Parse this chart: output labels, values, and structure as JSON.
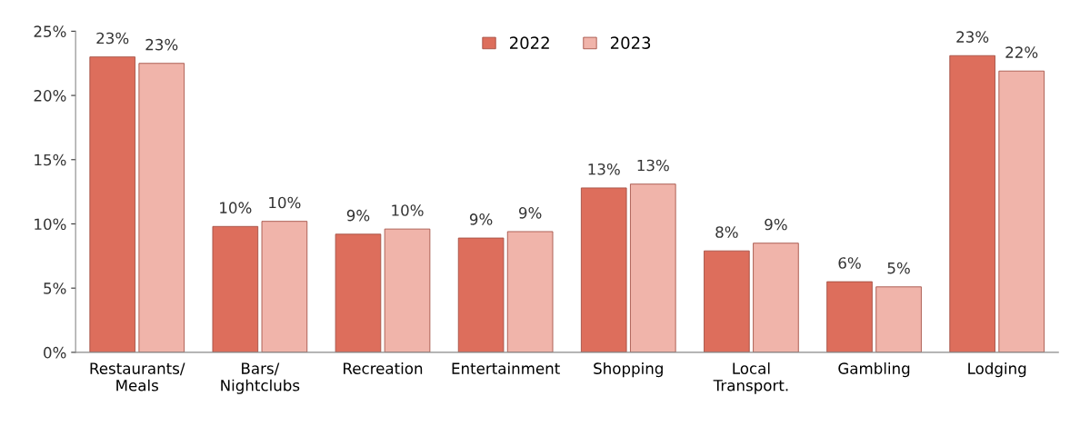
{
  "chart_data": {
    "type": "bar",
    "categories": [
      "Restaurants/\nMeals",
      "Bars/\nNightclubs",
      "Recreation",
      "Entertainment",
      "Shopping",
      "Local\nTransport.",
      "Gambling",
      "Lodging"
    ],
    "series": [
      {
        "name": "2022",
        "color": "#dd6e5c",
        "values": [
          23.0,
          9.8,
          9.2,
          8.9,
          12.8,
          7.9,
          5.5,
          23.1
        ],
        "value_labels": [
          "23%",
          "10%",
          "9%",
          "9%",
          "13%",
          "8%",
          "6%",
          "23%"
        ]
      },
      {
        "name": "2023",
        "color": "#f0b4aa",
        "values": [
          22.5,
          10.2,
          9.6,
          9.4,
          13.1,
          8.5,
          5.1,
          21.9
        ],
        "value_labels": [
          "23%",
          "10%",
          "10%",
          "9%",
          "13%",
          "9%",
          "5%",
          "22%"
        ]
      }
    ],
    "ylim": [
      0,
      25
    ],
    "yticks": [
      {
        "value": 0,
        "label": "0%"
      },
      {
        "value": 5,
        "label": "5%"
      },
      {
        "value": 10,
        "label": "10%"
      },
      {
        "value": 15,
        "label": "15%"
      },
      {
        "value": 20,
        "label": "20%"
      },
      {
        "value": 25,
        "label": "25%"
      }
    ],
    "grid": false,
    "legend": "top"
  }
}
